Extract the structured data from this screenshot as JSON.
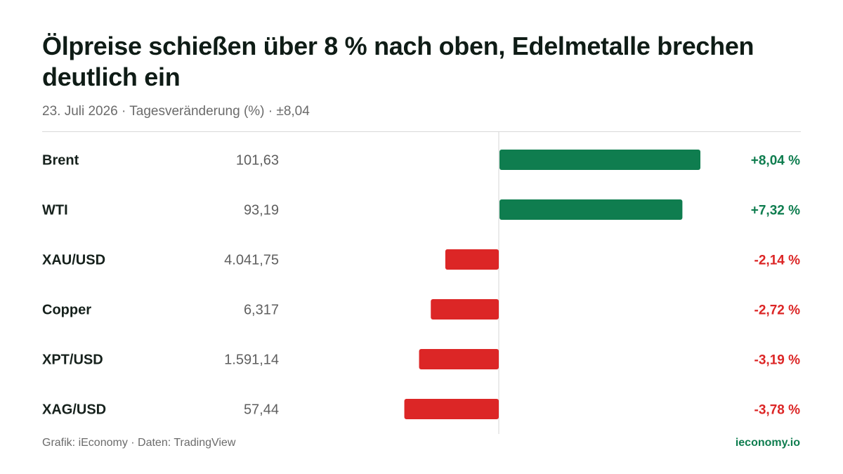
{
  "header": {
    "title": "Ölpreise schießen über 8 % nach oben, Edelmetalle brechen deutlich ein",
    "subtitle": "23. Juli 2026 · Tagesveränderung (%) · ±8,04"
  },
  "footer": {
    "source": "Grafik: iEconomy · Daten: TradingView",
    "brand": "ieconomy.io"
  },
  "colors": {
    "positive": "#0f7d4f",
    "negative": "#dc2626",
    "text": "#16211c",
    "muted": "#6b6b6b"
  },
  "chart_data": {
    "type": "bar",
    "orientation": "horizontal",
    "title": "Ölpreise schießen über 8 % nach oben, Edelmetalle brechen deutlich ein",
    "subtitle": "23. Juli 2026 · Tagesveränderung (%) · ±8,04",
    "xlim": [
      -8.04,
      8.04
    ],
    "grid": false,
    "categories": [
      "Brent",
      "WTI",
      "XAU/USD",
      "Copper",
      "XPT/USD",
      "XAG/USD"
    ],
    "prices": [
      "101,63",
      "93,19",
      "4.041,75",
      "6,317",
      "1.591,14",
      "57,44"
    ],
    "values": [
      8.04,
      7.32,
      -2.14,
      -2.72,
      -3.19,
      -3.78
    ],
    "value_labels": [
      "+8,04 %",
      "+7,32 %",
      "-2,14 %",
      "-2,72 %",
      "-3,19 %",
      "-3,78 %"
    ]
  }
}
